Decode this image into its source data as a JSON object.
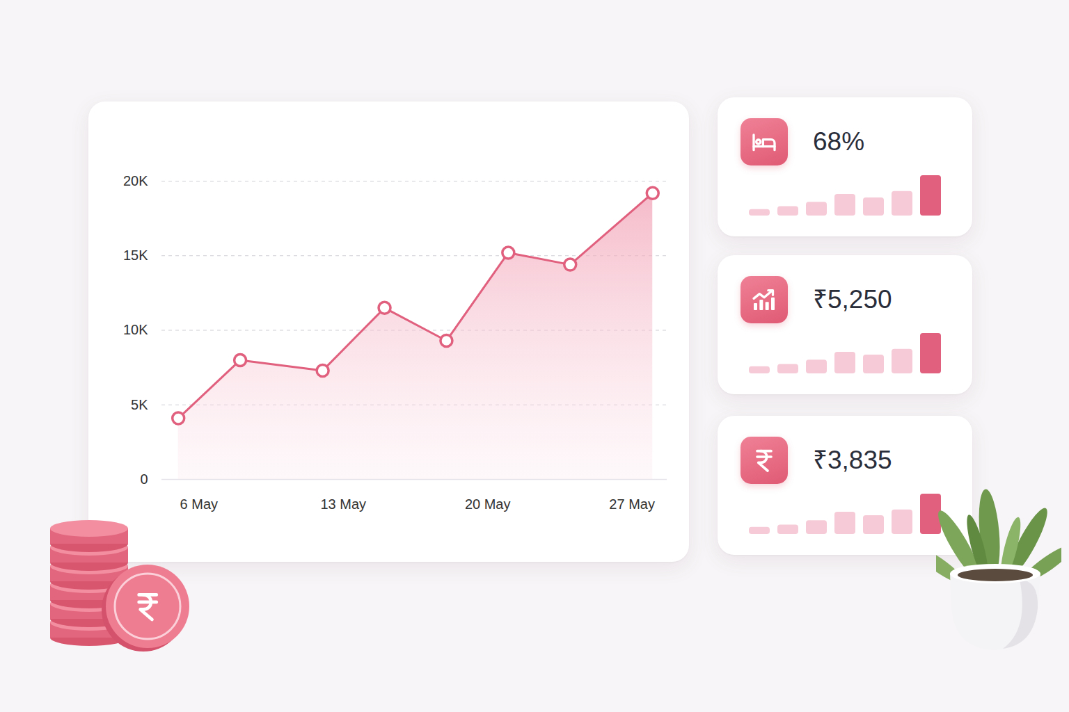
{
  "chart_data": [
    {
      "type": "area",
      "x": [
        5,
        8,
        12,
        15,
        18,
        21,
        24,
        28
      ],
      "values": [
        4100,
        8000,
        7300,
        11500,
        9300,
        15200,
        14400,
        19200
      ],
      "color": "#e0607e",
      "marker": "circle",
      "xlim": [
        4.2,
        28.7
      ],
      "xticks": [
        {
          "value": 6,
          "label": "6 May"
        },
        {
          "value": 13,
          "label": "13 May"
        },
        {
          "value": 20,
          "label": "20 May"
        },
        {
          "value": 27,
          "label": "27 May"
        }
      ],
      "ylim": [
        0,
        20000
      ],
      "yticks": [
        0,
        {
          "value": 5000,
          "label": "5K"
        },
        {
          "value": 10000,
          "label": "10K"
        },
        {
          "value": 15000,
          "label": "15K"
        },
        {
          "value": 20000,
          "label": "20K"
        }
      ],
      "grid": true
    },
    {
      "type": "bar",
      "title": "68%",
      "categories": [
        null,
        null,
        null,
        null,
        null,
        null,
        null
      ],
      "values": [
        9,
        13,
        19,
        30,
        25,
        34,
        56
      ],
      "colors": [
        "#f6cbd7",
        "#f6cbd7",
        "#f6cbd7",
        "#f6cbd7",
        "#f6cbd7",
        "#f6cbd7",
        "#e0607e"
      ],
      "ylim": [
        0,
        56
      ],
      "tick_labels": false
    },
    {
      "type": "bar",
      "title": "₹5,250",
      "categories": [
        null,
        null,
        null,
        null,
        null,
        null,
        null
      ],
      "values": [
        10,
        13,
        19,
        30,
        26,
        34,
        56
      ],
      "colors": [
        "#f6cbd7",
        "#f6cbd7",
        "#f6cbd7",
        "#f6cbd7",
        "#f6cbd7",
        "#f6cbd7",
        "#e0607e"
      ],
      "ylim": [
        0,
        56
      ],
      "tick_labels": false
    },
    {
      "type": "bar",
      "title": "₹3,835",
      "categories": [
        null,
        null,
        null,
        null,
        null,
        null,
        null
      ],
      "values": [
        10,
        13,
        19,
        31,
        26,
        34,
        56
      ],
      "colors": [
        "#f6cbd7",
        "#f6cbd7",
        "#f6cbd7",
        "#f6cbd7",
        "#f6cbd7",
        "#f6cbd7",
        "#e0607e"
      ],
      "ylim": [
        0,
        56
      ],
      "tick_labels": false
    }
  ]
}
